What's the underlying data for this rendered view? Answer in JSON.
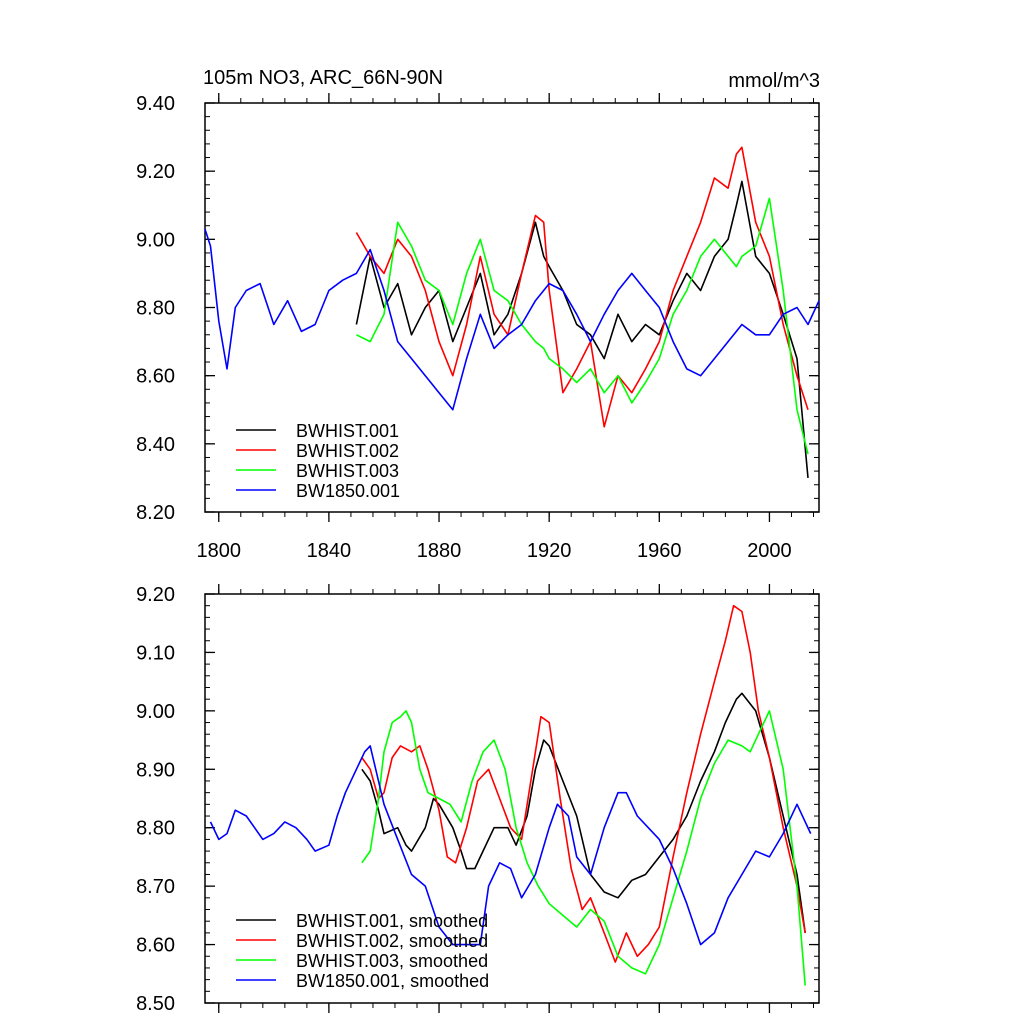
{
  "chart_data": [
    {
      "type": "line",
      "title": "105m NO3, ARC_66N-90N",
      "units": "mmol/m^3",
      "xlim": [
        1795,
        2018
      ],
      "ylim": [
        8.2,
        9.4
      ],
      "xticks": [
        "1800",
        "1840",
        "1880",
        "1920",
        "1960",
        "2000"
      ],
      "yticks": [
        "8.20",
        "8.40",
        "8.60",
        "8.80",
        "9.00",
        "9.20",
        "9.40"
      ],
      "legend_position": "bottom-left",
      "series": [
        {
          "name": "BWHIST.001",
          "color": "#000000",
          "x": [
            1850,
            1855,
            1860,
            1865,
            1870,
            1875,
            1880,
            1885,
            1890,
            1895,
            1900,
            1905,
            1910,
            1915,
            1918,
            1920,
            1925,
            1930,
            1935,
            1940,
            1945,
            1950,
            1955,
            1960,
            1965,
            1970,
            1975,
            1980,
            1985,
            1988,
            1990,
            1995,
            2000,
            2005,
            2010,
            2014
          ],
          "y": [
            8.75,
            8.95,
            8.8,
            8.87,
            8.72,
            8.8,
            8.85,
            8.7,
            8.8,
            8.9,
            8.72,
            8.78,
            8.9,
            9.05,
            8.95,
            8.92,
            8.85,
            8.75,
            8.72,
            8.65,
            8.78,
            8.7,
            8.75,
            8.72,
            8.82,
            8.9,
            8.85,
            8.95,
            9.0,
            9.1,
            9.17,
            8.95,
            8.9,
            8.78,
            8.65,
            8.3
          ]
        },
        {
          "name": "BWHIST.002",
          "color": "#ff0000",
          "x": [
            1850,
            1855,
            1860,
            1865,
            1870,
            1875,
            1880,
            1885,
            1890,
            1895,
            1900,
            1905,
            1910,
            1915,
            1918,
            1920,
            1925,
            1930,
            1935,
            1940,
            1945,
            1950,
            1955,
            1960,
            1965,
            1970,
            1975,
            1980,
            1985,
            1988,
            1990,
            1995,
            2000,
            2005,
            2010,
            2014
          ],
          "y": [
            9.02,
            8.95,
            8.9,
            9.0,
            8.95,
            8.85,
            8.7,
            8.6,
            8.75,
            8.95,
            8.78,
            8.72,
            8.9,
            9.07,
            9.05,
            8.85,
            8.55,
            8.62,
            8.7,
            8.45,
            8.6,
            8.55,
            8.62,
            8.7,
            8.85,
            8.95,
            9.05,
            9.18,
            9.15,
            9.25,
            9.27,
            9.05,
            8.95,
            8.75,
            8.6,
            8.5
          ]
        },
        {
          "name": "BWHIST.003",
          "color": "#00ff00",
          "x": [
            1850,
            1855,
            1860,
            1865,
            1870,
            1875,
            1880,
            1885,
            1890,
            1895,
            1900,
            1905,
            1910,
            1915,
            1918,
            1920,
            1925,
            1930,
            1935,
            1940,
            1945,
            1950,
            1955,
            1960,
            1965,
            1970,
            1975,
            1980,
            1985,
            1988,
            1990,
            1995,
            2000,
            2005,
            2010,
            2014
          ],
          "y": [
            8.72,
            8.7,
            8.78,
            9.05,
            8.98,
            8.88,
            8.85,
            8.75,
            8.9,
            9.0,
            8.85,
            8.82,
            8.75,
            8.7,
            8.68,
            8.65,
            8.62,
            8.58,
            8.62,
            8.55,
            8.6,
            8.52,
            8.58,
            8.65,
            8.78,
            8.85,
            8.95,
            9.0,
            8.95,
            8.92,
            8.95,
            8.98,
            9.12,
            8.85,
            8.5,
            8.37
          ]
        },
        {
          "name": "BW1850.001",
          "color": "#0000ff",
          "x": [
            1795,
            1797,
            1800,
            1803,
            1806,
            1810,
            1815,
            1820,
            1825,
            1830,
            1835,
            1840,
            1845,
            1850,
            1855,
            1860,
            1865,
            1870,
            1875,
            1880,
            1885,
            1890,
            1895,
            1900,
            1905,
            1910,
            1915,
            1920,
            1925,
            1930,
            1935,
            1940,
            1945,
            1950,
            1955,
            1960,
            1965,
            1970,
            1975,
            1980,
            1985,
            1990,
            1995,
            2000,
            2005,
            2010,
            2014,
            2018
          ],
          "y": [
            9.03,
            8.98,
            8.76,
            8.62,
            8.8,
            8.85,
            8.87,
            8.75,
            8.82,
            8.73,
            8.75,
            8.85,
            8.88,
            8.9,
            8.97,
            8.85,
            8.7,
            8.65,
            8.6,
            8.55,
            8.5,
            8.65,
            8.78,
            8.68,
            8.72,
            8.75,
            8.82,
            8.87,
            8.85,
            8.78,
            8.7,
            8.78,
            8.85,
            8.9,
            8.85,
            8.8,
            8.7,
            8.62,
            8.6,
            8.65,
            8.7,
            8.75,
            8.72,
            8.72,
            8.78,
            8.8,
            8.75,
            8.82
          ]
        }
      ]
    },
    {
      "type": "line",
      "xlim": [
        1795,
        2018
      ],
      "ylim": [
        8.5,
        9.2
      ],
      "yticks": [
        "8.50",
        "8.60",
        "8.70",
        "8.80",
        "8.90",
        "9.00",
        "9.10",
        "9.20"
      ],
      "legend_position": "bottom-left",
      "series": [
        {
          "name": "BWHIST.001, smoothed",
          "color": "#000000",
          "x": [
            1852,
            1855,
            1858,
            1860,
            1865,
            1868,
            1870,
            1875,
            1878,
            1880,
            1885,
            1888,
            1890,
            1893,
            1895,
            1900,
            1905,
            1908,
            1912,
            1915,
            1918,
            1920,
            1925,
            1930,
            1935,
            1940,
            1945,
            1950,
            1955,
            1960,
            1965,
            1970,
            1975,
            1980,
            1984,
            1988,
            1990,
            1995,
            2000,
            2005,
            2010,
            2013
          ],
          "y": [
            8.9,
            8.88,
            8.83,
            8.79,
            8.8,
            8.77,
            8.76,
            8.8,
            8.85,
            8.84,
            8.8,
            8.76,
            8.73,
            8.73,
            8.75,
            8.8,
            8.8,
            8.77,
            8.82,
            8.9,
            8.95,
            8.94,
            8.88,
            8.82,
            8.72,
            8.69,
            8.68,
            8.71,
            8.72,
            8.75,
            8.78,
            8.82,
            8.88,
            8.93,
            8.98,
            9.02,
            9.03,
            9.0,
            8.92,
            8.82,
            8.72,
            8.62
          ]
        },
        {
          "name": "BWHIST.002, smoothed",
          "color": "#ff0000",
          "x": [
            1852,
            1855,
            1858,
            1860,
            1863,
            1866,
            1870,
            1873,
            1876,
            1880,
            1883,
            1886,
            1890,
            1894,
            1898,
            1902,
            1906,
            1910,
            1914,
            1917,
            1920,
            1924,
            1928,
            1932,
            1935,
            1940,
            1944,
            1948,
            1952,
            1956,
            1960,
            1965,
            1970,
            1975,
            1980,
            1984,
            1987,
            1990,
            1993,
            1996,
            2000,
            2005,
            2010,
            2013
          ],
          "y": [
            8.92,
            8.9,
            8.85,
            8.86,
            8.92,
            8.94,
            8.93,
            8.94,
            8.9,
            8.83,
            8.75,
            8.74,
            8.8,
            8.88,
            8.9,
            8.85,
            8.8,
            8.78,
            8.9,
            8.99,
            8.98,
            8.85,
            8.73,
            8.66,
            8.68,
            8.62,
            8.57,
            8.62,
            8.58,
            8.6,
            8.63,
            8.75,
            8.86,
            8.96,
            9.05,
            9.12,
            9.18,
            9.17,
            9.1,
            9.0,
            8.92,
            8.8,
            8.7,
            8.62
          ]
        },
        {
          "name": "BWHIST.003, smoothed",
          "color": "#00ff00",
          "x": [
            1852,
            1855,
            1858,
            1860,
            1863,
            1866,
            1868,
            1870,
            1873,
            1876,
            1880,
            1884,
            1888,
            1892,
            1896,
            1900,
            1904,
            1908,
            1912,
            1916,
            1920,
            1925,
            1930,
            1935,
            1940,
            1945,
            1950,
            1955,
            1960,
            1965,
            1970,
            1975,
            1980,
            1985,
            1990,
            1993,
            1996,
            2000,
            2005,
            2010,
            2013
          ],
          "y": [
            8.74,
            8.76,
            8.85,
            8.93,
            8.98,
            8.99,
            9.0,
            8.98,
            8.9,
            8.86,
            8.85,
            8.84,
            8.81,
            8.88,
            8.93,
            8.95,
            8.9,
            8.8,
            8.74,
            8.7,
            8.67,
            8.65,
            8.63,
            8.66,
            8.64,
            8.58,
            8.56,
            8.55,
            8.6,
            8.68,
            8.76,
            8.85,
            8.91,
            8.95,
            8.94,
            8.93,
            8.96,
            9.0,
            8.9,
            8.7,
            8.53
          ]
        },
        {
          "name": "BW1850.001, smoothed",
          "color": "#0000ff",
          "x": [
            1797,
            1800,
            1803,
            1806,
            1810,
            1813,
            1816,
            1820,
            1824,
            1828,
            1832,
            1835,
            1840,
            1843,
            1846,
            1850,
            1853,
            1855,
            1860,
            1865,
            1870,
            1875,
            1880,
            1885,
            1890,
            1895,
            1898,
            1902,
            1906,
            1910,
            1915,
            1920,
            1923,
            1927,
            1930,
            1935,
            1940,
            1945,
            1948,
            1952,
            1956,
            1960,
            1965,
            1970,
            1975,
            1980,
            1985,
            1990,
            1995,
            2000,
            2005,
            2010,
            2015
          ],
          "y": [
            8.81,
            8.78,
            8.79,
            8.83,
            8.82,
            8.8,
            8.78,
            8.79,
            8.81,
            8.8,
            8.78,
            8.76,
            8.77,
            8.82,
            8.86,
            8.9,
            8.93,
            8.94,
            8.84,
            8.78,
            8.72,
            8.7,
            8.63,
            8.6,
            8.6,
            8.6,
            8.7,
            8.74,
            8.73,
            8.68,
            8.72,
            8.8,
            8.84,
            8.82,
            8.75,
            8.72,
            8.8,
            8.86,
            8.86,
            8.82,
            8.8,
            8.78,
            8.73,
            8.67,
            8.6,
            8.62,
            8.68,
            8.72,
            8.76,
            8.75,
            8.79,
            8.84,
            8.79
          ]
        }
      ]
    }
  ]
}
